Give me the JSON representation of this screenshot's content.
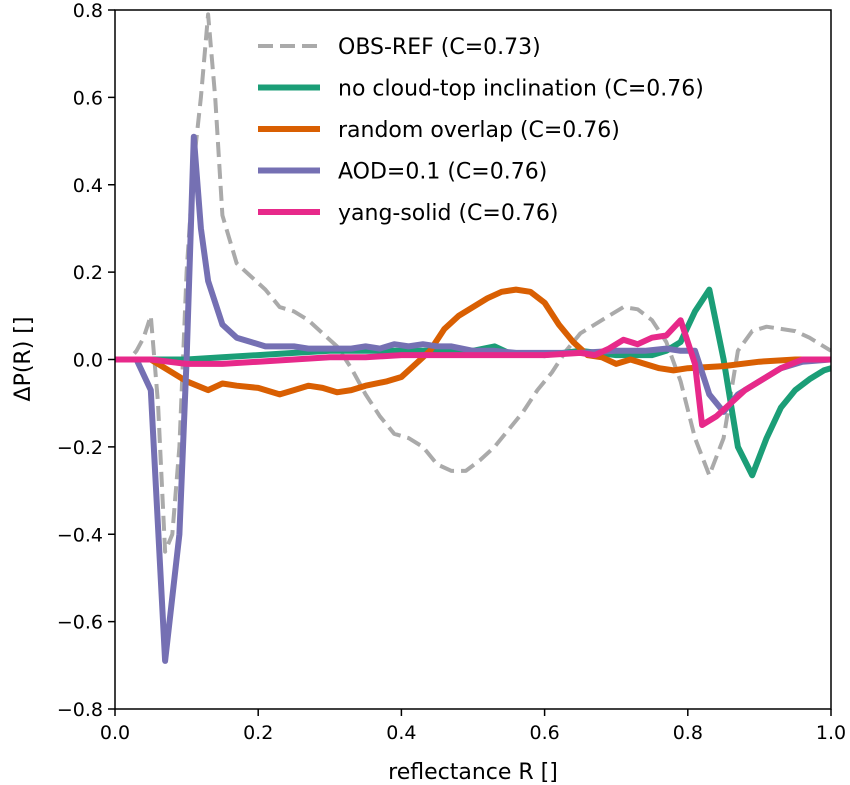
{
  "chart_data": {
    "type": "line",
    "title": "",
    "xlabel": "reflectance R []",
    "ylabel": "ΔP(R) []",
    "xlim": [
      0.0,
      1.0
    ],
    "ylim": [
      -0.8,
      0.8
    ],
    "xticks": [
      0.0,
      0.2,
      0.4,
      0.6,
      0.8,
      1.0
    ],
    "xtick_labels": [
      "0.0",
      "0.2",
      "0.4",
      "0.6",
      "0.8",
      "1.0"
    ],
    "yticks": [
      -0.8,
      -0.6,
      -0.4,
      -0.2,
      0.0,
      0.2,
      0.4,
      0.6,
      0.8
    ],
    "ytick_labels": [
      "−0.8",
      "−0.6",
      "−0.4",
      "−0.2",
      "0.0",
      "0.2",
      "0.4",
      "0.6",
      "0.8"
    ],
    "grid": false,
    "legend": {
      "placement": "top-right"
    },
    "series": [
      {
        "name": "OBS-REF (C=0.73)",
        "color": "#aaaaaa",
        "style": "dashed",
        "points": [
          [
            0.0,
            0.0
          ],
          [
            0.01,
            0.0
          ],
          [
            0.02,
            0.0
          ],
          [
            0.03,
            0.02
          ],
          [
            0.04,
            0.05
          ],
          [
            0.05,
            0.1
          ],
          [
            0.06,
            -0.1
          ],
          [
            0.07,
            -0.44
          ],
          [
            0.08,
            -0.4
          ],
          [
            0.09,
            -0.2
          ],
          [
            0.1,
            0.2
          ],
          [
            0.11,
            0.45
          ],
          [
            0.12,
            0.6
          ],
          [
            0.13,
            0.79
          ],
          [
            0.14,
            0.6
          ],
          [
            0.15,
            0.33
          ],
          [
            0.17,
            0.22
          ],
          [
            0.19,
            0.19
          ],
          [
            0.21,
            0.16
          ],
          [
            0.23,
            0.12
          ],
          [
            0.25,
            0.11
          ],
          [
            0.27,
            0.09
          ],
          [
            0.29,
            0.06
          ],
          [
            0.31,
            0.03
          ],
          [
            0.33,
            -0.02
          ],
          [
            0.35,
            -0.08
          ],
          [
            0.37,
            -0.13
          ],
          [
            0.39,
            -0.17
          ],
          [
            0.41,
            -0.18
          ],
          [
            0.43,
            -0.2
          ],
          [
            0.45,
            -0.24
          ],
          [
            0.47,
            -0.255
          ],
          [
            0.49,
            -0.255
          ],
          [
            0.51,
            -0.23
          ],
          [
            0.53,
            -0.2
          ],
          [
            0.55,
            -0.16
          ],
          [
            0.57,
            -0.12
          ],
          [
            0.59,
            -0.07
          ],
          [
            0.61,
            -0.03
          ],
          [
            0.63,
            0.02
          ],
          [
            0.65,
            0.06
          ],
          [
            0.67,
            0.08
          ],
          [
            0.69,
            0.1
          ],
          [
            0.71,
            0.12
          ],
          [
            0.73,
            0.115
          ],
          [
            0.75,
            0.09
          ],
          [
            0.77,
            0.04
          ],
          [
            0.79,
            -0.05
          ],
          [
            0.81,
            -0.18
          ],
          [
            0.83,
            -0.265
          ],
          [
            0.85,
            -0.18
          ],
          [
            0.87,
            0.02
          ],
          [
            0.89,
            0.065
          ],
          [
            0.91,
            0.075
          ],
          [
            0.93,
            0.07
          ],
          [
            0.95,
            0.065
          ],
          [
            0.97,
            0.05
          ],
          [
            0.99,
            0.03
          ],
          [
            1.0,
            0.02
          ]
        ]
      },
      {
        "name": "no cloud-top inclination (C=0.76)",
        "color": "#1b9e77",
        "style": "solid",
        "points": [
          [
            0.0,
            0.0
          ],
          [
            0.05,
            0.0
          ],
          [
            0.1,
            0.0
          ],
          [
            0.15,
            0.005
          ],
          [
            0.2,
            0.01
          ],
          [
            0.25,
            0.015
          ],
          [
            0.3,
            0.02
          ],
          [
            0.35,
            0.02
          ],
          [
            0.4,
            0.02
          ],
          [
            0.45,
            0.02
          ],
          [
            0.5,
            0.02
          ],
          [
            0.53,
            0.03
          ],
          [
            0.55,
            0.015
          ],
          [
            0.6,
            0.01
          ],
          [
            0.65,
            0.02
          ],
          [
            0.7,
            0.01
          ],
          [
            0.75,
            0.01
          ],
          [
            0.77,
            0.02
          ],
          [
            0.79,
            0.04
          ],
          [
            0.81,
            0.11
          ],
          [
            0.83,
            0.16
          ],
          [
            0.85,
            0.0
          ],
          [
            0.87,
            -0.2
          ],
          [
            0.89,
            -0.265
          ],
          [
            0.91,
            -0.18
          ],
          [
            0.93,
            -0.11
          ],
          [
            0.95,
            -0.07
          ],
          [
            0.97,
            -0.045
          ],
          [
            0.99,
            -0.025
          ],
          [
            1.0,
            -0.02
          ]
        ]
      },
      {
        "name": "random overlap (C=0.76)",
        "color": "#d95f02",
        "style": "solid",
        "points": [
          [
            0.0,
            0.0
          ],
          [
            0.05,
            0.0
          ],
          [
            0.07,
            -0.02
          ],
          [
            0.1,
            -0.05
          ],
          [
            0.13,
            -0.07
          ],
          [
            0.15,
            -0.055
          ],
          [
            0.17,
            -0.06
          ],
          [
            0.2,
            -0.065
          ],
          [
            0.23,
            -0.08
          ],
          [
            0.25,
            -0.07
          ],
          [
            0.27,
            -0.06
          ],
          [
            0.29,
            -0.065
          ],
          [
            0.31,
            -0.075
          ],
          [
            0.33,
            -0.07
          ],
          [
            0.35,
            -0.06
          ],
          [
            0.38,
            -0.05
          ],
          [
            0.4,
            -0.04
          ],
          [
            0.42,
            -0.01
          ],
          [
            0.44,
            0.02
          ],
          [
            0.46,
            0.07
          ],
          [
            0.48,
            0.1
          ],
          [
            0.5,
            0.12
          ],
          [
            0.52,
            0.14
          ],
          [
            0.54,
            0.155
          ],
          [
            0.56,
            0.16
          ],
          [
            0.58,
            0.155
          ],
          [
            0.6,
            0.13
          ],
          [
            0.62,
            0.08
          ],
          [
            0.64,
            0.04
          ],
          [
            0.66,
            0.01
          ],
          [
            0.68,
            0.005
          ],
          [
            0.7,
            -0.01
          ],
          [
            0.72,
            0.0
          ],
          [
            0.74,
            -0.01
          ],
          [
            0.76,
            -0.02
          ],
          [
            0.78,
            -0.025
          ],
          [
            0.8,
            -0.02
          ],
          [
            0.85,
            -0.015
          ],
          [
            0.9,
            -0.005
          ],
          [
            0.95,
            0.0
          ],
          [
            1.0,
            0.0
          ]
        ]
      },
      {
        "name": "AOD=0.1 (C=0.76)",
        "color": "#7570b3",
        "style": "solid",
        "points": [
          [
            0.0,
            0.0
          ],
          [
            0.02,
            0.0
          ],
          [
            0.03,
            0.0
          ],
          [
            0.05,
            -0.07
          ],
          [
            0.07,
            -0.69
          ],
          [
            0.09,
            -0.4
          ],
          [
            0.1,
            0.0
          ],
          [
            0.11,
            0.51
          ],
          [
            0.12,
            0.3
          ],
          [
            0.13,
            0.18
          ],
          [
            0.15,
            0.08
          ],
          [
            0.17,
            0.05
          ],
          [
            0.19,
            0.04
          ],
          [
            0.21,
            0.03
          ],
          [
            0.23,
            0.03
          ],
          [
            0.25,
            0.03
          ],
          [
            0.27,
            0.025
          ],
          [
            0.3,
            0.025
          ],
          [
            0.33,
            0.025
          ],
          [
            0.35,
            0.03
          ],
          [
            0.37,
            0.025
          ],
          [
            0.39,
            0.035
          ],
          [
            0.41,
            0.03
          ],
          [
            0.43,
            0.035
          ],
          [
            0.45,
            0.03
          ],
          [
            0.47,
            0.03
          ],
          [
            0.5,
            0.02
          ],
          [
            0.53,
            0.02
          ],
          [
            0.56,
            0.015
          ],
          [
            0.6,
            0.015
          ],
          [
            0.65,
            0.015
          ],
          [
            0.7,
            0.02
          ],
          [
            0.74,
            0.02
          ],
          [
            0.77,
            0.025
          ],
          [
            0.79,
            0.02
          ],
          [
            0.81,
            0.02
          ],
          [
            0.83,
            -0.08
          ],
          [
            0.85,
            -0.12
          ],
          [
            0.87,
            -0.08
          ],
          [
            0.9,
            -0.05
          ],
          [
            0.93,
            -0.02
          ],
          [
            0.96,
            -0.005
          ],
          [
            1.0,
            0.0
          ]
        ]
      },
      {
        "name": "yang-solid (C=0.76)",
        "color": "#e7298a",
        "style": "solid",
        "points": [
          [
            0.0,
            0.0
          ],
          [
            0.05,
            0.0
          ],
          [
            0.1,
            -0.01
          ],
          [
            0.15,
            -0.01
          ],
          [
            0.2,
            -0.005
          ],
          [
            0.25,
            0.0
          ],
          [
            0.3,
            0.005
          ],
          [
            0.35,
            0.005
          ],
          [
            0.4,
            0.01
          ],
          [
            0.45,
            0.01
          ],
          [
            0.5,
            0.01
          ],
          [
            0.55,
            0.01
          ],
          [
            0.6,
            0.01
          ],
          [
            0.65,
            0.015
          ],
          [
            0.67,
            0.01
          ],
          [
            0.69,
            0.025
          ],
          [
            0.71,
            0.045
          ],
          [
            0.73,
            0.035
          ],
          [
            0.75,
            0.05
          ],
          [
            0.77,
            0.055
          ],
          [
            0.79,
            0.09
          ],
          [
            0.81,
            -0.01
          ],
          [
            0.82,
            -0.15
          ],
          [
            0.84,
            -0.13
          ],
          [
            0.86,
            -0.1
          ],
          [
            0.88,
            -0.07
          ],
          [
            0.9,
            -0.05
          ],
          [
            0.93,
            -0.02
          ],
          [
            0.96,
            0.0
          ],
          [
            1.0,
            0.0
          ]
        ]
      }
    ]
  }
}
